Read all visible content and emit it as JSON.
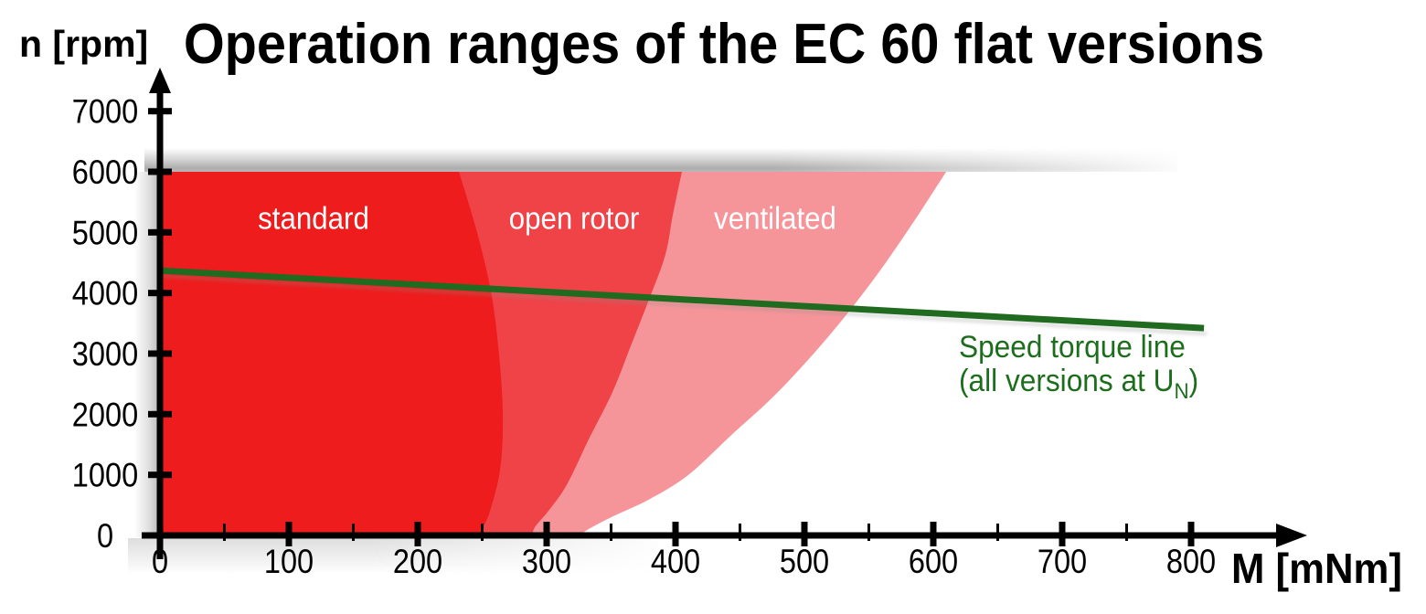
{
  "chart_data": {
    "type": "area",
    "title": "Operation ranges of the EC 60 flat versions",
    "xlabel": "M [mNm]",
    "ylabel": "n [rpm]",
    "xlim": [
      0,
      890
    ],
    "ylim": [
      0,
      7800
    ],
    "x_ticks_major": [
      0,
      100,
      200,
      300,
      400,
      500,
      600,
      700,
      800
    ],
    "x_ticks_minor": [
      50,
      150,
      250,
      350,
      450,
      550,
      650,
      750
    ],
    "y_ticks_major": [
      0,
      1000,
      2000,
      3000,
      4000,
      5000,
      6000,
      7000
    ],
    "region_top_rpm": 6000,
    "regions": [
      {
        "name": "standard",
        "label": "standard",
        "color": "#ee1c1c",
        "boundary": [
          [
            232,
            6000
          ],
          [
            246,
            5000
          ],
          [
            257,
            4000
          ],
          [
            263,
            3000
          ],
          [
            266,
            2000
          ],
          [
            264,
            1100
          ],
          [
            256,
            400
          ],
          [
            250,
            100
          ],
          [
            249,
            0
          ]
        ],
        "label_at": [
          119,
          5220
        ]
      },
      {
        "name": "open-rotor",
        "label": "open rotor",
        "color": "#ef4348",
        "boundary": [
          [
            405,
            6000
          ],
          [
            398,
            5300
          ],
          [
            392,
            4620
          ],
          [
            379,
            3870
          ],
          [
            365,
            3110
          ],
          [
            351,
            2360
          ],
          [
            333,
            1600
          ],
          [
            316,
            850
          ],
          [
            302,
            420
          ],
          [
            291,
            140
          ],
          [
            289,
            0
          ]
        ],
        "label_at": [
          321,
          5220
        ]
      },
      {
        "name": "ventilated",
        "label": "ventilated",
        "color": "#f69599",
        "boundary": [
          [
            610,
            6000
          ],
          [
            584,
            5150
          ],
          [
            558,
            4350
          ],
          [
            531,
            3600
          ],
          [
            503,
            2900
          ],
          [
            474,
            2250
          ],
          [
            443,
            1650
          ],
          [
            410,
            1000
          ],
          [
            380,
            600
          ],
          [
            352,
            320
          ],
          [
            334,
            120
          ],
          [
            325,
            0
          ]
        ],
        "label_at": [
          477,
          5220
        ]
      }
    ],
    "speed_torque_line": {
      "color": "#206b20",
      "points": [
        [
          0,
          4370
        ],
        [
          810,
          3420
        ]
      ],
      "label_line1": "Speed torque line",
      "label_line2_prefix": "(all versions at U",
      "label_line2_sub": "N",
      "label_line2_suffix": ")"
    }
  }
}
